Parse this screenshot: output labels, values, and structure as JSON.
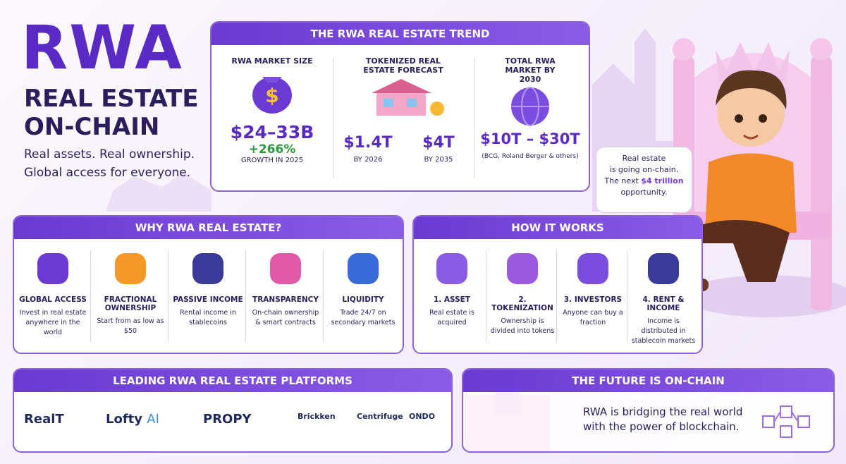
{
  "header": {
    "title": "RWA",
    "subtitle_lines": [
      "REAL ESTATE",
      "ON-CHAIN"
    ],
    "tagline_lines": [
      "Real assets. Real ownership.",
      "Global access for everyone."
    ]
  },
  "trend": {
    "title": "THE RWA REAL ESTATE TREND",
    "market_size": {
      "label": "RWA MARKET SIZE",
      "value": "$24–33B",
      "growth": "+266%",
      "note": "GROWTH IN 2025"
    },
    "forecast": {
      "label": "TOKENIZED REAL ESTATE FORECAST",
      "items": [
        {
          "value": "$1.4T",
          "note": "BY 2026"
        },
        {
          "value": "$4T",
          "note": "BY 2035"
        }
      ]
    },
    "total": {
      "label": "TOTAL RWA MARKET BY 2030",
      "value": "$10T – $30T",
      "note": "(BCG, Roland Berger & others)"
    }
  },
  "bubble": {
    "line1": "Real estate",
    "line2": "is going on-chain.",
    "line3": "The next",
    "highlight": "$4 trillion",
    "line4": "opportunity."
  },
  "why": {
    "title": "WHY RWA REAL ESTATE?",
    "items": [
      {
        "title": "GLOBAL ACCESS",
        "text": "Invest in real estate anywhere in the world"
      },
      {
        "title": "FRACTIONAL OWNERSHIP",
        "text": "Start from as low as $50"
      },
      {
        "title": "PASSIVE INCOME",
        "text": "Rental income in stablecoins"
      },
      {
        "title": "TRANSPARENCY",
        "text": "On-chain ownership & smart contracts"
      },
      {
        "title": "LIQUIDITY",
        "text": "Trade 24/7 on secondary markets"
      }
    ]
  },
  "how": {
    "title": "HOW IT WORKS",
    "steps": [
      {
        "title": "1. ASSET",
        "text": "Real estate is acquired"
      },
      {
        "title": "2. TOKENIZATION",
        "text": "Ownership is divided into tokens"
      },
      {
        "title": "3. INVESTORS",
        "text": "Anyone can buy a fraction"
      },
      {
        "title": "4. RENT & INCOME",
        "text": "Income is distributed in stablecoin markets"
      }
    ]
  },
  "platforms": {
    "title": "LEADING RWA REAL ESTATE PLATFORMS",
    "items": [
      {
        "name": "RealT"
      },
      {
        "name": "Lofty",
        "suffix": "AI"
      },
      {
        "name": "PROPY"
      },
      {
        "name": "Brickken"
      },
      {
        "name": "Centrifuge"
      },
      {
        "name": "ONDO"
      }
    ]
  },
  "future": {
    "title": "THE FUTURE IS ON-CHAIN",
    "lines": [
      "RWA is bridging the real world",
      "with the power of blockchain."
    ]
  }
}
